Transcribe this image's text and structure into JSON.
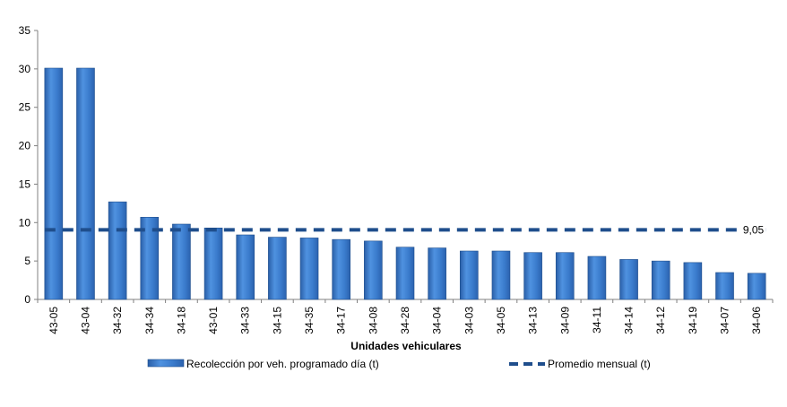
{
  "chart_data": {
    "type": "bar",
    "title": "",
    "xlabel": "Unidades vehiculares",
    "ylabel": "",
    "ylim": [
      0,
      35
    ],
    "yticks": [
      0,
      5,
      10,
      15,
      20,
      25,
      30,
      35
    ],
    "grid": false,
    "legend_position": "bottom",
    "categories": [
      "43-05",
      "43-04",
      "34-32",
      "34-34",
      "34-18",
      "43-01",
      "34-33",
      "34-15",
      "34-35",
      "34-17",
      "34-08",
      "34-28",
      "34-04",
      "34-03",
      "34-05",
      "34-13",
      "34-09",
      "34-11",
      "34-14",
      "34-12",
      "34-19",
      "34-07",
      "34-06"
    ],
    "series": [
      {
        "name": "Recolección por veh. programado día (t)",
        "type": "bar",
        "color": "#3C7FD0",
        "values": [
          30.1,
          30.1,
          12.7,
          10.7,
          9.8,
          9.3,
          8.4,
          8.1,
          8.0,
          7.8,
          7.6,
          6.8,
          6.7,
          6.3,
          6.3,
          6.1,
          6.1,
          5.6,
          5.2,
          5.0,
          4.8,
          3.5,
          3.4
        ]
      },
      {
        "name": "Promedio mensual (t)",
        "type": "line",
        "style": "dashed",
        "color": "#1F4E8C",
        "value": 9.05,
        "label": "9,05"
      }
    ]
  }
}
